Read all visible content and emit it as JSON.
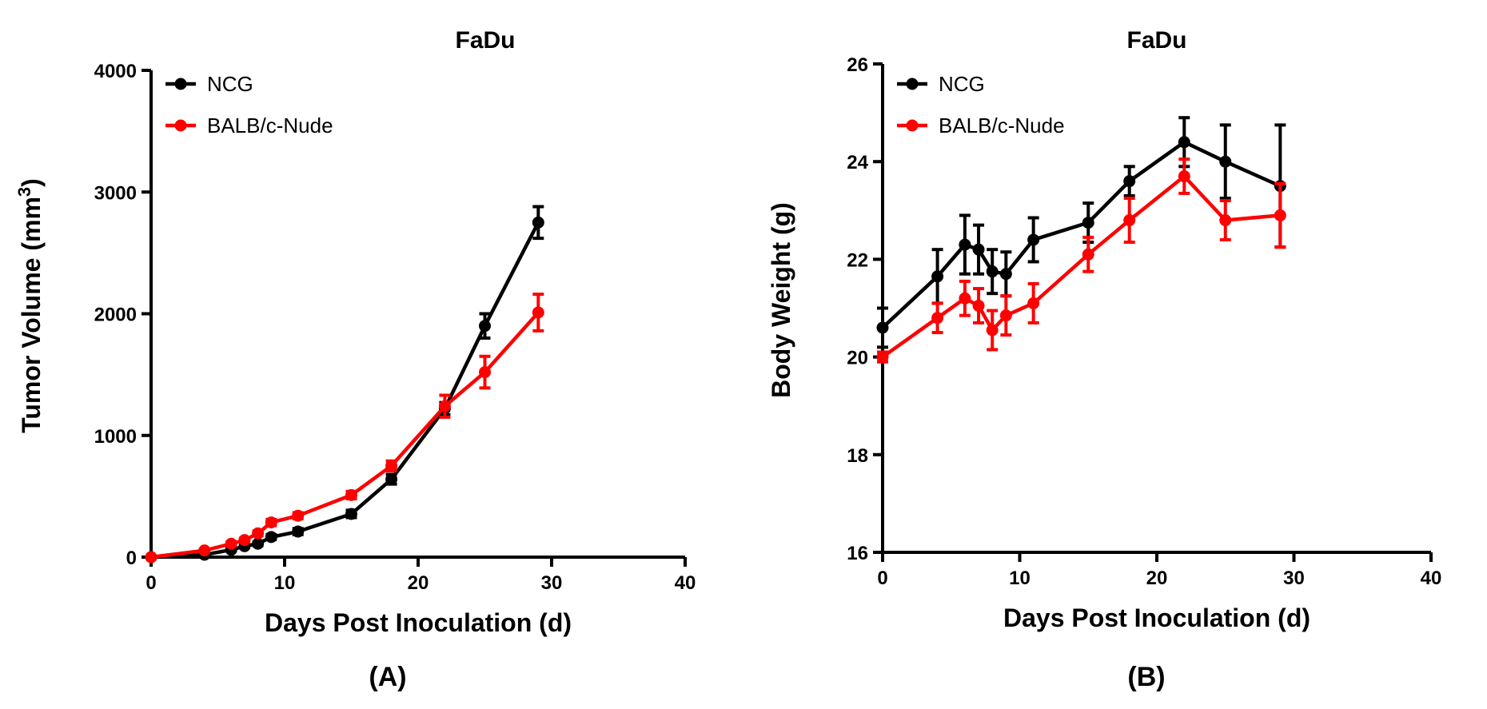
{
  "chart_data": [
    {
      "type": "line",
      "title": "FaDu",
      "xlabel": "Days Post  Inoculation (d)",
      "ylabel": "Tumor Volume (mm",
      "ylabel_superscript": "3",
      "ylabel_close": ")",
      "panel_label": "(A)",
      "xlim": [
        0,
        40
      ],
      "ylim": [
        0,
        4000
      ],
      "xticks": [
        0,
        10,
        20,
        30,
        40
      ],
      "yticks": [
        0,
        1000,
        2000,
        3000,
        4000
      ],
      "x": [
        0,
        4,
        6,
        7,
        8,
        9,
        11,
        15,
        18,
        22,
        25,
        29
      ],
      "series": [
        {
          "name": "NCG",
          "color": "#000000",
          "values": [
            0,
            20,
            60,
            90,
            110,
            165,
            210,
            355,
            640,
            1220,
            1900,
            2750
          ],
          "errors": [
            0,
            5,
            10,
            10,
            15,
            20,
            25,
            30,
            40,
            50,
            100,
            130
          ]
        },
        {
          "name": "BALB/c-Nude",
          "color": "#ff0000",
          "values": [
            0,
            55,
            110,
            140,
            195,
            285,
            340,
            510,
            750,
            1240,
            1520,
            2010
          ],
          "errors": [
            0,
            10,
            15,
            15,
            20,
            25,
            25,
            30,
            40,
            90,
            130,
            150
          ]
        }
      ],
      "legend": "top-left"
    },
    {
      "type": "line",
      "title": "FaDu",
      "xlabel": "Days Post  Inoculation (d)",
      "ylabel": "Body Weight (g)",
      "panel_label": "(B)",
      "xlim": [
        0,
        40
      ],
      "ylim": [
        16,
        26
      ],
      "xticks": [
        0,
        10,
        20,
        30,
        40
      ],
      "yticks": [
        16,
        18,
        20,
        22,
        24,
        26
      ],
      "x": [
        0,
        4,
        6,
        7,
        8,
        9,
        11,
        15,
        18,
        22,
        25,
        29
      ],
      "series": [
        {
          "name": "NCG",
          "color": "#000000",
          "values": [
            20.6,
            21.65,
            22.3,
            22.2,
            21.75,
            21.7,
            22.4,
            22.75,
            23.6,
            24.4,
            24.0,
            23.5
          ],
          "errors": [
            0.4,
            0.55,
            0.6,
            0.5,
            0.45,
            0.45,
            0.45,
            0.4,
            0.3,
            0.5,
            0.75,
            1.25
          ]
        },
        {
          "name": "BALB/c-Nude",
          "color": "#ff0000",
          "values": [
            20.0,
            20.8,
            21.2,
            21.05,
            20.55,
            20.85,
            21.1,
            22.1,
            22.8,
            23.7,
            22.8,
            22.9
          ],
          "errors": [
            0.1,
            0.3,
            0.35,
            0.35,
            0.4,
            0.4,
            0.4,
            0.35,
            0.45,
            0.35,
            0.4,
            0.65
          ]
        }
      ],
      "legend": "top-left"
    }
  ]
}
